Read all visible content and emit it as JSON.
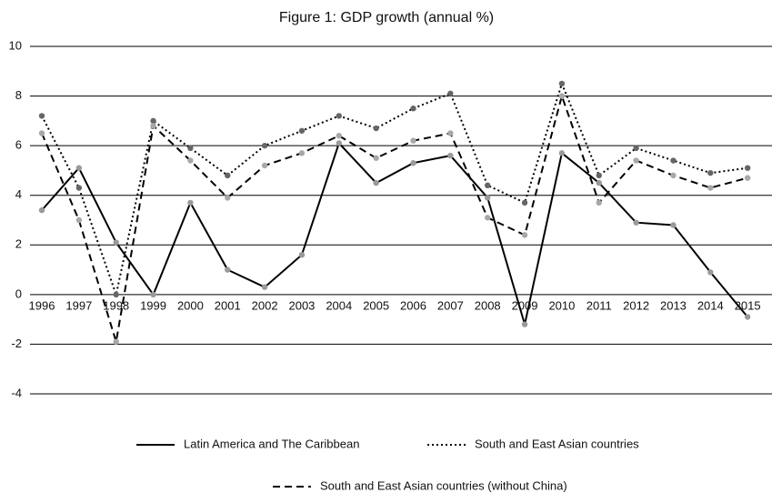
{
  "chart_data": {
    "type": "line",
    "title": "Figure 1: GDP growth (annual %)",
    "categories": [
      "1996",
      "1997",
      "1998",
      "1999",
      "2000",
      "2001",
      "2002",
      "2003",
      "2004",
      "2005",
      "2006",
      "2007",
      "2008",
      "2009",
      "2010",
      "2011",
      "2012",
      "2013",
      "2014",
      "2015"
    ],
    "series": [
      {
        "name": "Latin America and The Caribbean",
        "color": "#000000",
        "linestyle": "solid",
        "marker_color": "#9a9a9a",
        "values": [
          3.4,
          5.1,
          2.1,
          0.0,
          3.7,
          1.0,
          0.3,
          1.6,
          6.1,
          4.5,
          5.3,
          5.6,
          3.9,
          -1.2,
          5.7,
          4.5,
          2.9,
          2.8,
          0.9,
          -0.9
        ]
      },
      {
        "name": "South and East Asian countries",
        "color": "#000000",
        "linestyle": "dotted",
        "marker_color": "#666666",
        "values": [
          7.2,
          4.3,
          0.0,
          7.0,
          5.9,
          4.8,
          6.0,
          6.6,
          7.2,
          6.7,
          7.5,
          8.1,
          4.4,
          3.7,
          8.5,
          4.8,
          5.9,
          5.4,
          4.9,
          5.1
        ]
      },
      {
        "name": "South and East Asian countries (without China)",
        "color": "#000000",
        "linestyle": "dashed",
        "marker_color": "#a8a8a8",
        "values": [
          6.5,
          3.0,
          -1.9,
          6.8,
          5.4,
          3.9,
          5.2,
          5.7,
          6.4,
          5.5,
          6.2,
          6.5,
          3.1,
          2.4,
          8.0,
          3.7,
          5.4,
          4.8,
          4.3,
          4.7
        ]
      }
    ],
    "ylim": [
      -4,
      10
    ],
    "yticks": [
      -4,
      -2,
      0,
      2,
      4,
      6,
      8,
      10
    ],
    "grid": true
  }
}
